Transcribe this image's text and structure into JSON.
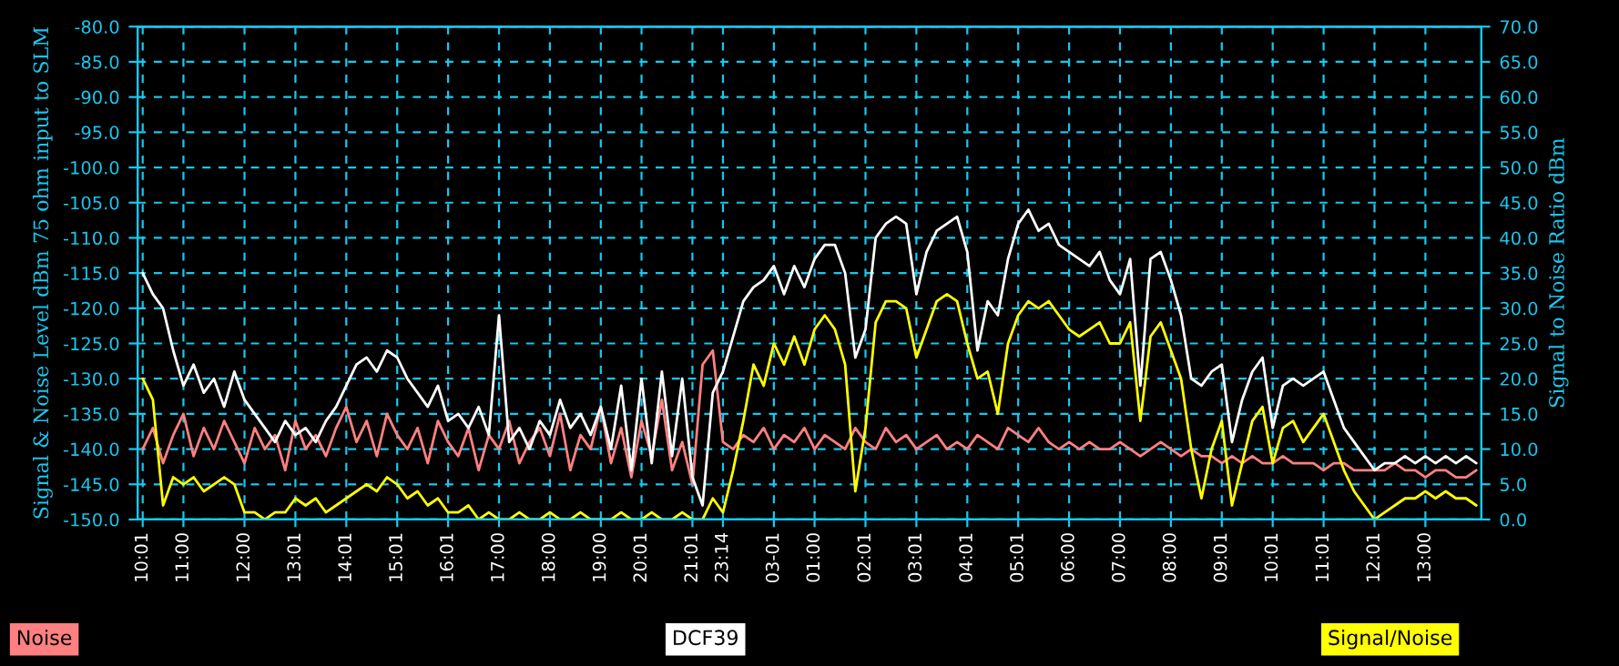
{
  "chart_data": {
    "type": "line",
    "ylabel": "Signal & Noise Level dBm 75 ohm input to SLM",
    "y2label": "Signal to Noise Ratio dBm",
    "categories": [
      "10:01",
      null,
      null,
      null,
      "11:00",
      null,
      null,
      null,
      null,
      null,
      "12:00",
      null,
      null,
      null,
      null,
      "13:01",
      null,
      null,
      null,
      null,
      "14:01",
      null,
      null,
      null,
      null,
      "15:01",
      null,
      null,
      null,
      null,
      "16:01",
      null,
      null,
      null,
      null,
      "17:00",
      null,
      null,
      null,
      null,
      "18:00",
      null,
      null,
      null,
      null,
      "19:00",
      null,
      null,
      null,
      "20:01",
      null,
      null,
      null,
      null,
      "21:01",
      null,
      null,
      "23:14",
      null,
      null,
      null,
      null,
      "03-01",
      null,
      null,
      null,
      "01:00",
      null,
      null,
      null,
      null,
      "02:01",
      null,
      null,
      null,
      null,
      "03:01",
      null,
      null,
      null,
      null,
      "04:01",
      null,
      null,
      null,
      null,
      "05:01",
      null,
      null,
      null,
      null,
      "06:00",
      null,
      null,
      null,
      null,
      "07:00",
      null,
      null,
      null,
      null,
      "08:00",
      null,
      null,
      null,
      null,
      "09:01",
      null,
      null,
      null,
      null,
      "10:01",
      null,
      null,
      null,
      null,
      "11:01",
      null,
      null,
      null,
      null,
      "12:01",
      null,
      null,
      null,
      null,
      "13:00",
      null,
      null,
      null,
      null,
      null
    ],
    "series": [
      {
        "name": "Noise",
        "color": "#ff8080",
        "values": [
          -140,
          -137,
          -142,
          -138,
          -135,
          -141,
          -137,
          -140,
          -136,
          -139,
          -142,
          -137,
          -140,
          -138,
          -143,
          -136,
          -140,
          -138,
          -141,
          -137,
          -134,
          -139,
          -136,
          -141,
          -135,
          -138,
          -140,
          -137,
          -142,
          -136,
          -139,
          -141,
          -137,
          -143,
          -138,
          -140,
          -136,
          -142,
          -139,
          -137,
          -141,
          -135,
          -143,
          -138,
          -140,
          -134,
          -142,
          -137,
          -144,
          -136,
          -141,
          -133,
          -143,
          -139,
          -145,
          -128,
          -126,
          -139,
          -140,
          -138,
          -139,
          -137,
          -140,
          -138,
          -139,
          -137,
          -140,
          -138,
          -139,
          -140,
          -137,
          -139,
          -140,
          -137,
          -139,
          -138,
          -140,
          -139,
          -138,
          -140,
          -139,
          -140,
          -138,
          -139,
          -140,
          -137,
          -138,
          -139,
          -137,
          -139,
          -140,
          -139,
          -140,
          -139,
          -140,
          -140,
          -139,
          -140,
          -141,
          -140,
          -139,
          -140,
          -141,
          -140,
          -141,
          -141,
          -142,
          -141,
          -142,
          -141,
          -142,
          -142,
          -141,
          -142,
          -142,
          -142,
          -143,
          -142,
          -142,
          -143,
          -143,
          -143,
          -143,
          -142,
          -143,
          -143,
          -144,
          -143,
          -143,
          -144,
          -144,
          -143
        ]
      },
      {
        "name": "DCF39",
        "color": "#ffffff",
        "values": [
          -115,
          -118,
          -120,
          -126,
          -131,
          -128,
          -132,
          -130,
          -134,
          -129,
          -133,
          -135,
          -137,
          -139,
          -136,
          -138,
          -137,
          -139,
          -136,
          -134,
          -131,
          -128,
          -127,
          -129,
          -126,
          -127,
          -130,
          -132,
          -134,
          -131,
          -136,
          -135,
          -137,
          -134,
          -138,
          -121,
          -139,
          -137,
          -140,
          -136,
          -138,
          -133,
          -137,
          -135,
          -138,
          -134,
          -140,
          -131,
          -143,
          -130,
          -142,
          -129,
          -141,
          -130,
          -144,
          -148,
          -132,
          -129,
          -124,
          -119,
          -117,
          -116,
          -114,
          -118,
          -114,
          -117,
          -113,
          -111,
          -111,
          -115,
          -127,
          -123,
          -110,
          -108,
          -107,
          -108,
          -118,
          -112,
          -109,
          -108,
          -107,
          -112,
          -126,
          -119,
          -121,
          -113,
          -108,
          -106,
          -109,
          -108,
          -111,
          -112,
          -113,
          -114,
          -112,
          -116,
          -118,
          -113,
          -131,
          -113,
          -112,
          -116,
          -121,
          -130,
          -131,
          -129,
          -128,
          -139,
          -133,
          -129,
          -127,
          -137,
          -131,
          -130,
          -131,
          -130,
          -129,
          -133,
          -137,
          -139,
          -141,
          -143,
          -142,
          -142,
          -141,
          -142,
          -141,
          -142,
          -141,
          -142,
          -141,
          -142
        ]
      },
      {
        "name": "Signal/Noise",
        "color": "#ffff00",
        "axis": "y2",
        "values": [
          20,
          17,
          2,
          6,
          5,
          6,
          4,
          5,
          6,
          5,
          1,
          1,
          0,
          1,
          1,
          3,
          2,
          3,
          1,
          2,
          3,
          4,
          5,
          4,
          6,
          5,
          3,
          4,
          2,
          3,
          1,
          1,
          2,
          0,
          1,
          0,
          0,
          1,
          0,
          0,
          1,
          0,
          0,
          1,
          0,
          0,
          0,
          1,
          0,
          0,
          1,
          0,
          0,
          1,
          0,
          0,
          3,
          1,
          7,
          14,
          22,
          19,
          25,
          22,
          26,
          22,
          27,
          29,
          27,
          22,
          4,
          13,
          28,
          31,
          31,
          30,
          23,
          27,
          31,
          32,
          31,
          25,
          20,
          21,
          15,
          25,
          29,
          31,
          30,
          31,
          29,
          27,
          26,
          27,
          28,
          25,
          25,
          28,
          14,
          26,
          28,
          24,
          20,
          10,
          3,
          10,
          14,
          2,
          8,
          14,
          16,
          8,
          13,
          14,
          11,
          13,
          15,
          11,
          7,
          4,
          2,
          0,
          1,
          2,
          3,
          3,
          4,
          3,
          4,
          3,
          3,
          2
        ]
      }
    ],
    "ylim": [
      -150,
      -80
    ],
    "yticks": [
      {
        "value": -150,
        "label": "-150.0"
      },
      {
        "value": -145,
        "label": "-145.0"
      },
      {
        "value": -140,
        "label": "-140.0"
      },
      {
        "value": -135,
        "label": "-135.0"
      },
      {
        "value": -130,
        "label": "-130.0"
      },
      {
        "value": -125,
        "label": "-125.0"
      },
      {
        "value": -120,
        "label": "-120.0"
      },
      {
        "value": -115,
        "label": "-115.0"
      },
      {
        "value": -110,
        "label": "-110.0"
      },
      {
        "value": -105,
        "label": "-105.0"
      },
      {
        "value": -100,
        "label": "-100.0"
      },
      {
        "value": -95,
        "label": "-95.0"
      },
      {
        "value": -90,
        "label": "-90.0"
      },
      {
        "value": -85,
        "label": "-85.0"
      },
      {
        "value": -80,
        "label": "-80.0"
      }
    ],
    "y2lim": [
      0,
      70
    ],
    "y2ticks": [
      {
        "value": 0,
        "label": "0.0"
      },
      {
        "value": 5,
        "label": "5.0"
      },
      {
        "value": 10,
        "label": "10.0"
      },
      {
        "value": 15,
        "label": "15.0"
      },
      {
        "value": 20,
        "label": "20.0"
      },
      {
        "value": 25,
        "label": "25.0"
      },
      {
        "value": 30,
        "label": "30.0"
      },
      {
        "value": 35,
        "label": "35.0"
      },
      {
        "value": 40,
        "label": "40.0"
      },
      {
        "value": 45,
        "label": "45.0"
      },
      {
        "value": 50,
        "label": "50.0"
      },
      {
        "value": 55,
        "label": "55.0"
      },
      {
        "value": 60,
        "label": "60.0"
      },
      {
        "value": 65,
        "label": "65.0"
      },
      {
        "value": 70,
        "label": "70.0"
      }
    ],
    "grid": true,
    "legend": "bottom",
    "line_style": "solid",
    "marker": "none"
  }
}
